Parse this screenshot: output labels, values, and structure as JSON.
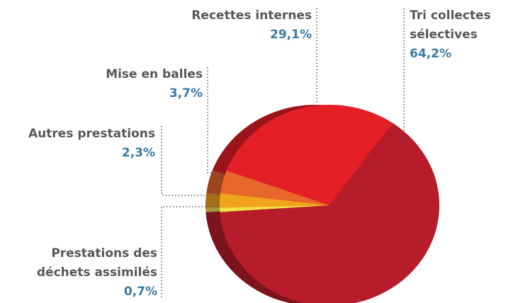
{
  "chart_data": {
    "type": "pie",
    "categories": [
      "Tri collectes sélectives",
      "Prestations des déchets assimilés",
      "Autres prestations",
      "Mise en balles",
      "Recettes internes"
    ],
    "values": [
      64.2,
      0.7,
      2.3,
      3.7,
      29.1
    ],
    "value_labels": [
      "64,2%",
      "0,7%",
      "2,3%",
      "3,7%",
      "29,1%"
    ],
    "colors": [
      "#b71c2b",
      "#f4de4a",
      "#f2a31c",
      "#e8662a",
      "#e31e25"
    ]
  }
}
